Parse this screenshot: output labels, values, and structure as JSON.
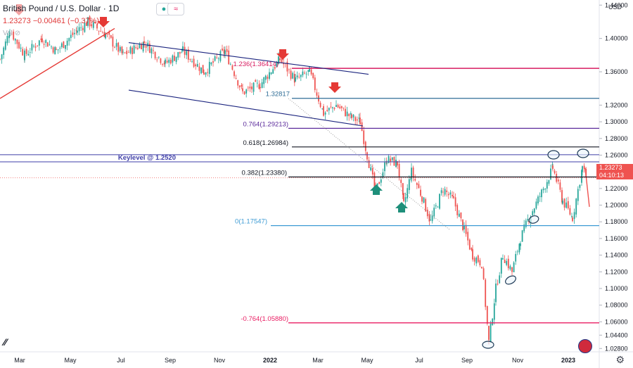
{
  "header": {
    "symbol": "British Pound / U.S. Dollar · 1D",
    "price_line": "1.23273 −0.00461 (−0.37%)",
    "volume_label": "Vol",
    "currency": "USD",
    "last_price": "1.23273",
    "countdown": "04:10:13"
  },
  "icons": [
    "eye-off-icon",
    "live-dot-icon",
    "indicator-icon",
    "gear-icon",
    "uk-flag-icon",
    "tradingview-logo-icon"
  ],
  "colors": {
    "up": "#26a69a",
    "down": "#ef5350",
    "magenta": "#d81b60",
    "steel": "#2f6d96",
    "purple": "#5b2a9b",
    "black": "#131722",
    "navy": "#3f3fa8",
    "teal": "#3d9bd4",
    "red_line": "#e53935",
    "green_arrow": "#1e8f7a",
    "channel": "#1a237e"
  },
  "chart_data": {
    "type": "candlestick",
    "ylim": [
      1.024,
      1.436
    ],
    "y_ticks": [
      "1.44000",
      "1.40000",
      "1.36000",
      "1.32000",
      "1.30000",
      "1.28000",
      "1.26000",
      "1.24000",
      "1.22000",
      "1.20000",
      "1.18000",
      "1.16000",
      "1.14000",
      "1.12000",
      "1.10000",
      "1.08000",
      "1.06000",
      "1.04400",
      "1.02800"
    ],
    "x_ticks": [
      "Mar",
      "May",
      "Jul",
      "Sep",
      "Nov",
      "2022",
      "Mar",
      "May",
      "Jul",
      "Sep",
      "Nov",
      "2023"
    ],
    "key_points": [
      {
        "label": "start",
        "price": 1.375
      },
      {
        "label": "May 2021 high",
        "price": 1.42
      },
      {
        "label": "Jan 2022 high",
        "price": 1.3748
      },
      {
        "label": "May 2022 low",
        "price": 1.2155
      },
      {
        "label": "Sep 2022 low",
        "price": 1.0356
      },
      {
        "label": "Dec 2022 high",
        "price": 1.2446
      },
      {
        "label": "last",
        "price": 1.23273
      }
    ],
    "levels": [
      {
        "label": "1.236(1.36414)",
        "value": 1.36414,
        "color": "#d81b60"
      },
      {
        "label": "1.32817",
        "value": 1.32817,
        "color": "#2f6d96"
      },
      {
        "label": "0.764(1.29213)",
        "value": 1.29213,
        "color": "#5b2a9b"
      },
      {
        "label": "0.618(1.26984)",
        "value": 1.26984,
        "color": "#131722"
      },
      {
        "label": "Keylevel @ 1.2520",
        "value": 1.252,
        "color": "#3f3fa8"
      },
      {
        "label": "0.382(1.23380)",
        "value": 1.2338,
        "color": "#131722"
      },
      {
        "label": "0(1.17547)",
        "value": 1.17547,
        "color": "#3d9bd4"
      },
      {
        "label": "-0.764(1.05880)",
        "value": 1.0588,
        "color": "#e91e63"
      }
    ],
    "annotations": [
      {
        "type": "down-arrow",
        "at": "May 2021 high"
      },
      {
        "type": "down-arrow",
        "at": "Jan 2022 high"
      },
      {
        "type": "down-arrow",
        "at": "Mar 2022"
      },
      {
        "type": "up-arrow",
        "at": "May 2022 low"
      },
      {
        "type": "up-arrow",
        "at": "Jun 2022 low"
      },
      {
        "type": "ellipse",
        "at": "Sep 2022 low"
      },
      {
        "type": "ellipse",
        "at": "Nov 2022"
      },
      {
        "type": "ellipse",
        "at": "Dec 2022 high"
      }
    ]
  }
}
